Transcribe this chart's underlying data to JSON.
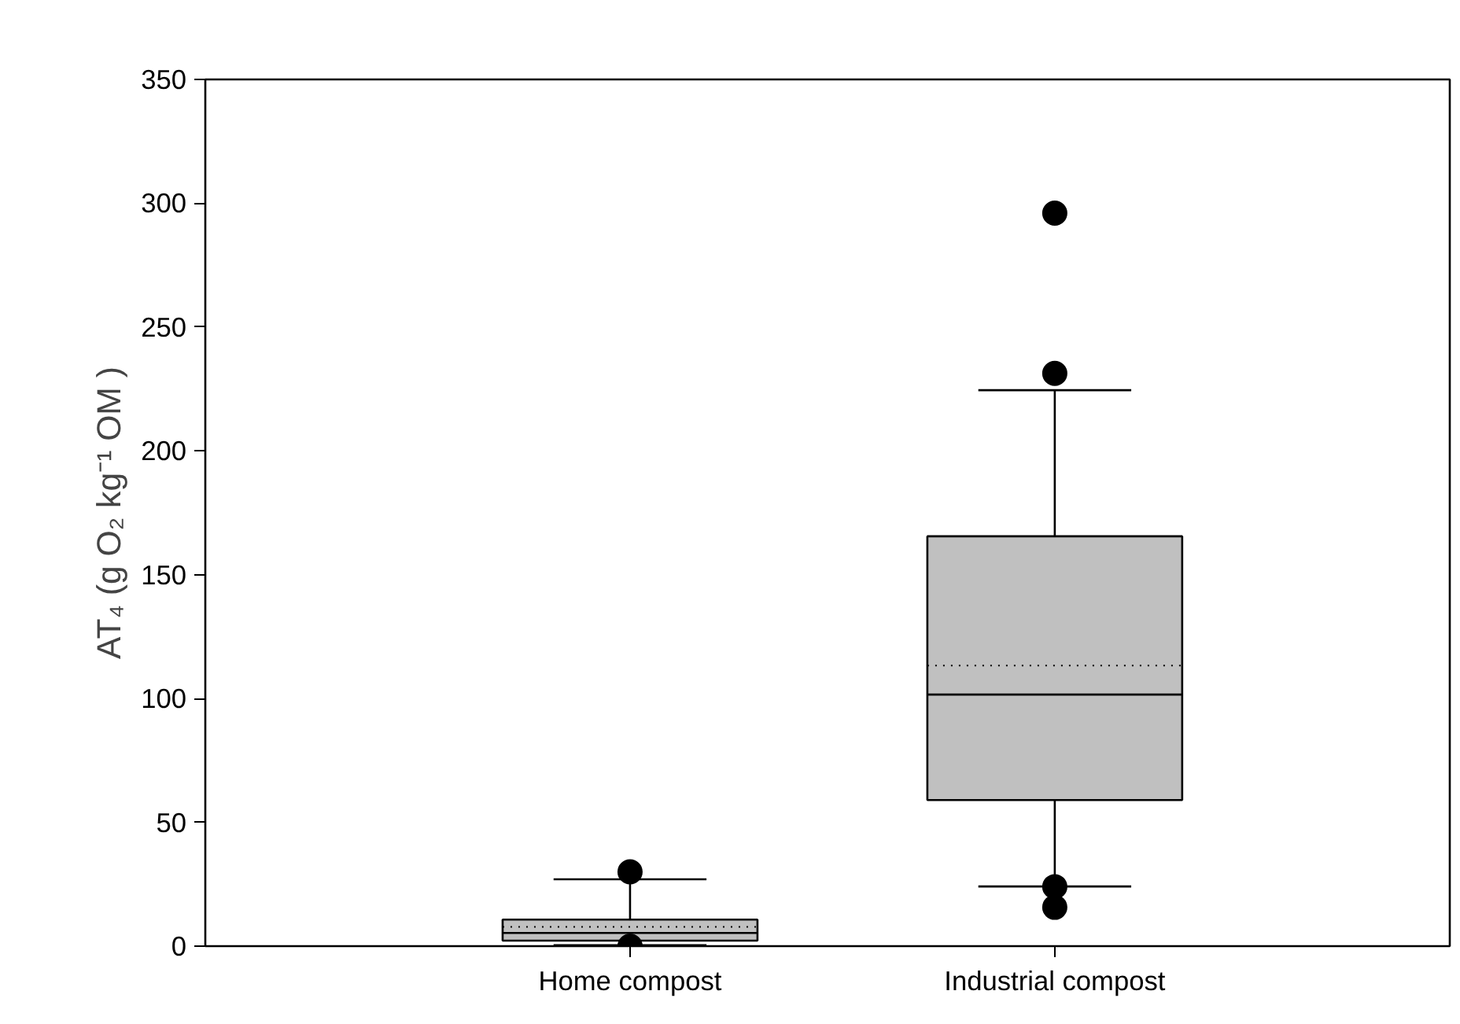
{
  "chart_data": {
    "type": "box",
    "ylabel": "AT₄ (g O₂ kg⁻¹ OM )",
    "categories": [
      "Home compost",
      "Industrial compost"
    ],
    "color": "#c0c0c0",
    "boxes": [
      {
        "low": 0.4,
        "q1": 2.2,
        "median": 5.3,
        "q3": 10.7,
        "high": 27,
        "mean": 7.8,
        "outliers": [
          30,
          0
        ]
      },
      {
        "low": 24.1,
        "q1": 59,
        "median": 101.6,
        "q3": 165.5,
        "high": 224.5,
        "mean": 113.3,
        "outliers": [
          296,
          231.3,
          24,
          15.7
        ]
      }
    ],
    "ylim": [
      0,
      350
    ],
    "yticks": [
      0,
      50,
      100,
      150,
      200,
      250,
      300,
      350
    ],
    "grid": false
  }
}
